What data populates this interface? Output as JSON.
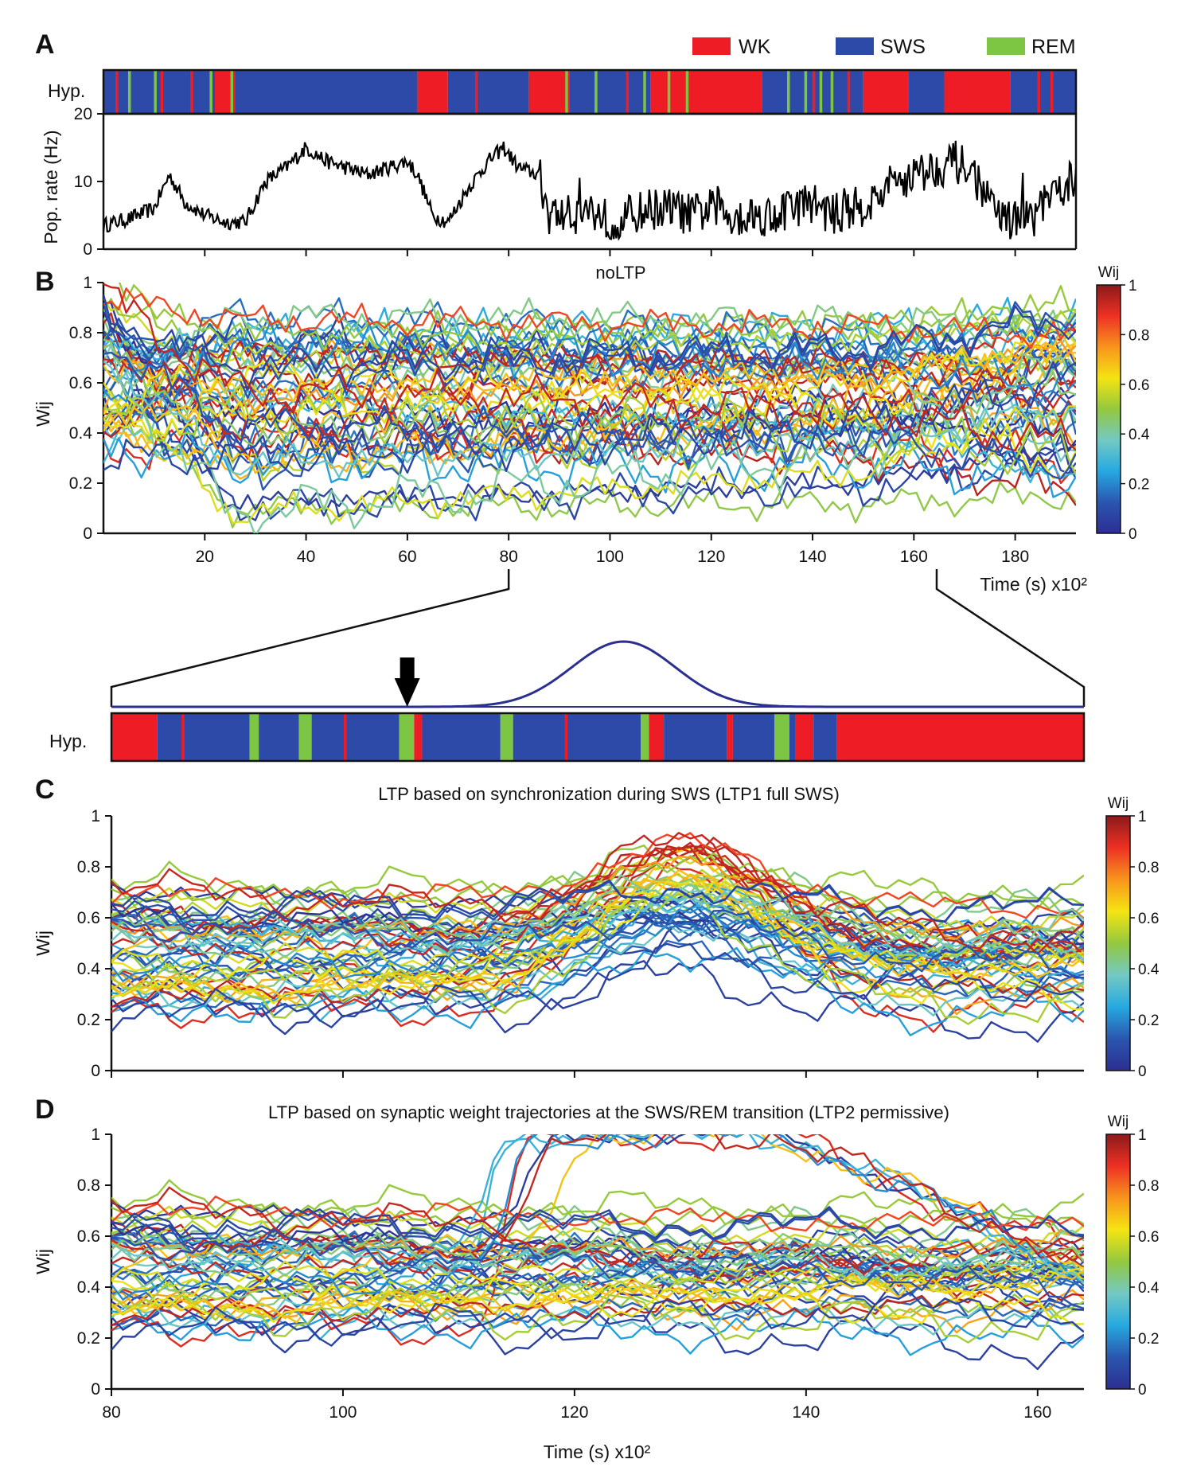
{
  "panels": {
    "a": "A",
    "b": "B",
    "c": "C",
    "d": "D"
  },
  "legend": [
    {
      "label": "WK",
      "color": "#ee1c25"
    },
    {
      "label": "SWS",
      "color": "#2e4aa8"
    },
    {
      "label": "REM",
      "color": "#7cc644"
    }
  ],
  "colors": {
    "wk": "#ee1c25",
    "sws": "#2e4aa8",
    "rem": "#7cc644",
    "rate_line": "#000000",
    "gaussian": "#2b2f8f"
  },
  "hypnogram": {
    "label": "Hyp.",
    "zoom_label": "Hyp.",
    "segments": [
      {
        "s": 0,
        "e": 22,
        "st": "SWS"
      },
      {
        "s": 22,
        "e": 26,
        "st": "WK"
      },
      {
        "s": 26,
        "e": 62,
        "st": "SWS"
      },
      {
        "s": 62,
        "e": 68,
        "st": "WK"
      },
      {
        "s": 68,
        "e": 84,
        "st": "SWS"
      },
      {
        "s": 84,
        "e": 92,
        "st": "WK"
      },
      {
        "s": 92,
        "e": 108,
        "st": "SWS"
      },
      {
        "s": 108,
        "e": 130,
        "st": "WK"
      },
      {
        "s": 130,
        "e": 150,
        "st": "SWS"
      },
      {
        "s": 150,
        "e": 159,
        "st": "WK"
      },
      {
        "s": 159,
        "e": 166,
        "st": "SWS"
      },
      {
        "s": 166,
        "e": 179,
        "st": "WK"
      },
      {
        "s": 179,
        "e": 192,
        "st": "SWS"
      }
    ],
    "marks": [
      {
        "t": 2.6,
        "st": "WK"
      },
      {
        "t": 5.1,
        "st": "REM"
      },
      {
        "t": 10.2,
        "st": "REM"
      },
      {
        "t": 11.5,
        "st": "WK"
      },
      {
        "t": 17.4,
        "st": "WK"
      },
      {
        "t": 21.2,
        "st": "REM"
      },
      {
        "t": 25.3,
        "st": "REM"
      },
      {
        "t": 73.6,
        "st": "WK"
      },
      {
        "t": 91.4,
        "st": "REM"
      },
      {
        "t": 97.2,
        "st": "REM"
      },
      {
        "t": 103.4,
        "st": "WK"
      },
      {
        "t": 106.8,
        "st": "REM"
      },
      {
        "t": 111.6,
        "st": "REM"
      },
      {
        "t": 114.1,
        "st": "WK"
      },
      {
        "t": 115.2,
        "st": "REM"
      },
      {
        "t": 126.8,
        "st": "WK"
      },
      {
        "t": 135.2,
        "st": "REM"
      },
      {
        "t": 138.6,
        "st": "REM"
      },
      {
        "t": 140.2,
        "st": "WK"
      },
      {
        "t": 141.6,
        "st": "REM"
      },
      {
        "t": 143.8,
        "st": "REM"
      },
      {
        "t": 147.1,
        "st": "WK"
      },
      {
        "t": 172.3,
        "st": "WK"
      },
      {
        "t": 174.8,
        "st": "WK"
      },
      {
        "t": 184.6,
        "st": "WK"
      },
      {
        "t": 187.2,
        "st": "WK"
      }
    ],
    "zoom_segments": [
      {
        "s": 80,
        "e": 84,
        "st": "WK"
      },
      {
        "s": 84,
        "e": 92,
        "st": "SWS"
      },
      {
        "s": 92,
        "e": 92.8,
        "st": "REM"
      },
      {
        "s": 92.8,
        "e": 96.3,
        "st": "SWS"
      },
      {
        "s": 96.3,
        "e": 97.4,
        "st": "REM"
      },
      {
        "s": 97.4,
        "e": 105,
        "st": "SWS"
      },
      {
        "s": 105,
        "e": 106.3,
        "st": "REM"
      },
      {
        "s": 106.3,
        "e": 107,
        "st": "WK"
      },
      {
        "s": 107,
        "e": 113.8,
        "st": "SWS"
      },
      {
        "s": 113.8,
        "e": 114.9,
        "st": "REM"
      },
      {
        "s": 114.9,
        "e": 126,
        "st": "SWS"
      },
      {
        "s": 126,
        "e": 126.7,
        "st": "REM"
      },
      {
        "s": 126.7,
        "e": 128,
        "st": "WK"
      },
      {
        "s": 128,
        "e": 133.5,
        "st": "SWS"
      },
      {
        "s": 133.5,
        "e": 134,
        "st": "WK"
      },
      {
        "s": 134,
        "e": 137.6,
        "st": "SWS"
      },
      {
        "s": 137.6,
        "e": 138.9,
        "st": "REM"
      },
      {
        "s": 138.9,
        "e": 139.4,
        "st": "SWS"
      },
      {
        "s": 139.4,
        "e": 141,
        "st": "WK"
      },
      {
        "s": 141,
        "e": 143,
        "st": "SWS"
      },
      {
        "s": 143,
        "e": 164.5,
        "st": "WK"
      }
    ],
    "zoom_marks": [
      {
        "t": 86.2,
        "st": "WK"
      },
      {
        "t": 100.3,
        "st": "WK"
      },
      {
        "t": 119.5,
        "st": "WK"
      }
    ],
    "arrow_time": 105.7
  },
  "chart_data": [
    {
      "type": "line",
      "panel": "A",
      "ylabel": "Pop. rate (Hz)",
      "xlim": [
        0,
        192
      ],
      "ylim": [
        0,
        20
      ],
      "yticks": [
        0,
        10,
        20
      ],
      "xticks": [
        20,
        40,
        60,
        80,
        100,
        120,
        140,
        160,
        180
      ],
      "series": [
        {
          "x": [
            0,
            5,
            10,
            13,
            16,
            20,
            24,
            28,
            32,
            36,
            40,
            44,
            48,
            52,
            56,
            60,
            62,
            65,
            68,
            72,
            76,
            79,
            82,
            86,
            88,
            92,
            96,
            100,
            104,
            108,
            112,
            116,
            120,
            124,
            128,
            132,
            136,
            140,
            144,
            148,
            152,
            156,
            160,
            164,
            168,
            172,
            176,
            180,
            184,
            188,
            192
          ],
          "y": [
            3.5,
            4.5,
            6.0,
            11.0,
            7.0,
            5.0,
            4.0,
            4.0,
            10.0,
            12.0,
            15.0,
            13.0,
            12.0,
            11.0,
            12.0,
            13.0,
            11.0,
            5.0,
            4.0,
            9.0,
            13.0,
            15.0,
            12.0,
            11.0,
            5.0,
            5.0,
            6.0,
            4.0,
            5.0,
            6.0,
            6.0,
            5.0,
            6.0,
            5.0,
            5.0,
            5.0,
            6.0,
            7.0,
            5.0,
            6.0,
            7.0,
            10.0,
            11.0,
            12.0,
            13.0,
            11.0,
            5.0,
            4.0,
            5.0,
            8.0,
            11.0
          ]
        }
      ]
    },
    {
      "type": "line",
      "panel": "B",
      "title": "noLTP",
      "ylabel": "Wij",
      "xlabel": "Time (s) x10²",
      "xlim": [
        0,
        192
      ],
      "ylim": [
        0,
        1
      ],
      "yticks": [
        0,
        0.2,
        0.4,
        0.6,
        0.8,
        1
      ],
      "xticks": [
        20,
        40,
        60,
        80,
        100,
        120,
        140,
        160,
        180
      ],
      "n_trajectories": 56,
      "colormap": "jet",
      "colorbar": {
        "label": "Wij",
        "ticks": [
          0,
          0.2,
          0.4,
          0.6,
          0.8,
          1
        ]
      }
    },
    {
      "type": "line",
      "panel": "C",
      "title": "LTP based on synchronization during SWS (LTP1 full SWS)",
      "ylabel": "Wij",
      "xlim": [
        80,
        164
      ],
      "ylim": [
        0,
        1
      ],
      "yticks": [
        0,
        0.2,
        0.4,
        0.6,
        0.8,
        1
      ],
      "xticks": [
        80,
        100,
        120,
        140,
        160
      ],
      "n_trajectories": 56,
      "colormap": "jet",
      "colorbar": {
        "label": "Wij",
        "ticks": [
          0,
          0.2,
          0.4,
          0.6,
          0.8,
          1
        ]
      },
      "gaussian_window": {
        "center": 124.5,
        "sigma": 4.5
      }
    },
    {
      "type": "line",
      "panel": "D",
      "title": "LTP based on synaptic weight trajectories at the SWS/REM transition (LTP2 permissive)",
      "ylabel": "Wij",
      "xlabel": "Time (s) x10²",
      "xlim": [
        80,
        164
      ],
      "ylim": [
        0,
        1
      ],
      "yticks": [
        0,
        0.2,
        0.4,
        0.6,
        0.8,
        1
      ],
      "xticks": [
        80,
        100,
        120,
        140,
        160
      ],
      "n_trajectories": 56,
      "colormap": "jet",
      "colorbar": {
        "label": "Wij",
        "ticks": [
          0,
          0.2,
          0.4,
          0.6,
          0.8,
          1
        ]
      }
    }
  ]
}
